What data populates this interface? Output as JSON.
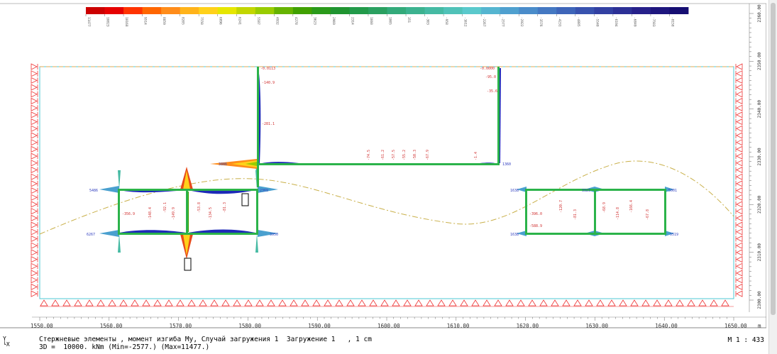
{
  "legend": {
    "colors": [
      "#cc0000",
      "#e60000",
      "#ff3300",
      "#ff6600",
      "#ff8c1a",
      "#ffb31a",
      "#ffd11a",
      "#e6e600",
      "#c2d600",
      "#99cc00",
      "#66b300",
      "#40a000",
      "#2a9a1a",
      "#1f9430",
      "#229a4a",
      "#2aa060",
      "#33aa7a",
      "#3cb28f",
      "#45baa3",
      "#50c2b8",
      "#5ac9cc",
      "#55b5d0",
      "#4fa0cf",
      "#4a8cca",
      "#4478c2",
      "#3e65b9",
      "#3852ae",
      "#3240a2",
      "#2c3096",
      "#26208a",
      "#1e167e",
      "#160e72"
    ],
    "labels": [
      "11477",
      "10823",
      "10168",
      "9514",
      "8859",
      "8205",
      "7550",
      "6896",
      "6241",
      "5587",
      "4932",
      "4278",
      "3623",
      "2969",
      "2314",
      "1660",
      "1005",
      "351",
      "-303",
      "-958",
      "-1612",
      "-2267",
      "-2577",
      "-2922",
      "-3576",
      "-4231",
      "-4885",
      "-5540",
      "-6194",
      "-6849",
      "-7503",
      "-8158"
    ]
  },
  "x_axis": {
    "ticks": [
      "1550.00",
      "1560.00",
      "1570.00",
      "1580.00",
      "1590.00",
      "1600.00",
      "1610.00",
      "1620.00",
      "1630.00",
      "1640.00",
      "1650.00"
    ],
    "unit": "m"
  },
  "y_axis": {
    "ticks": [
      "2360.00",
      "2350.00",
      "2340.00",
      "2330.00",
      "2320.00",
      "2310.00",
      "2300.00"
    ]
  },
  "annotations": {
    "frame_left_nodes": [
      "5486",
      "6267",
      "3886",
      "2369",
      "3950"
    ],
    "frame_left_moments": [
      "-356.9",
      "-148.4",
      "-92.1",
      "-149.9",
      "-53.8",
      "-134.5",
      "-81.3"
    ],
    "upper_column": [
      "-0.0113",
      "-140.9",
      "-281.1",
      "5686",
      "-1.4"
    ],
    "upper_column_right": [
      "-0.0000",
      "-95.0",
      "-35.6",
      "1360"
    ],
    "beam": [
      "-74.5",
      "-61.2",
      "-57.5",
      "-55.2",
      "-50.3",
      "-67.9",
      "-1.4"
    ],
    "frame_right_nodes": [
      "1638",
      "1638",
      "3323",
      "5001",
      "5519"
    ],
    "frame_right_moments": [
      "-396.0",
      "-588.9",
      "-120.7",
      "-81.3",
      "-68.9",
      "-114.8",
      "-166.4",
      "-67.8"
    ]
  },
  "status": {
    "line1": "Стержневые элементы , момент изгиба My, Случай загружения 1  Загружение 1   , 1 cm",
    "line2": "3D =  10000. kNm (Min=-2577.) (Max=11477.)",
    "scale": "M 1 : 433"
  },
  "axis_marker": {
    "y": "Y",
    "x": "X"
  }
}
